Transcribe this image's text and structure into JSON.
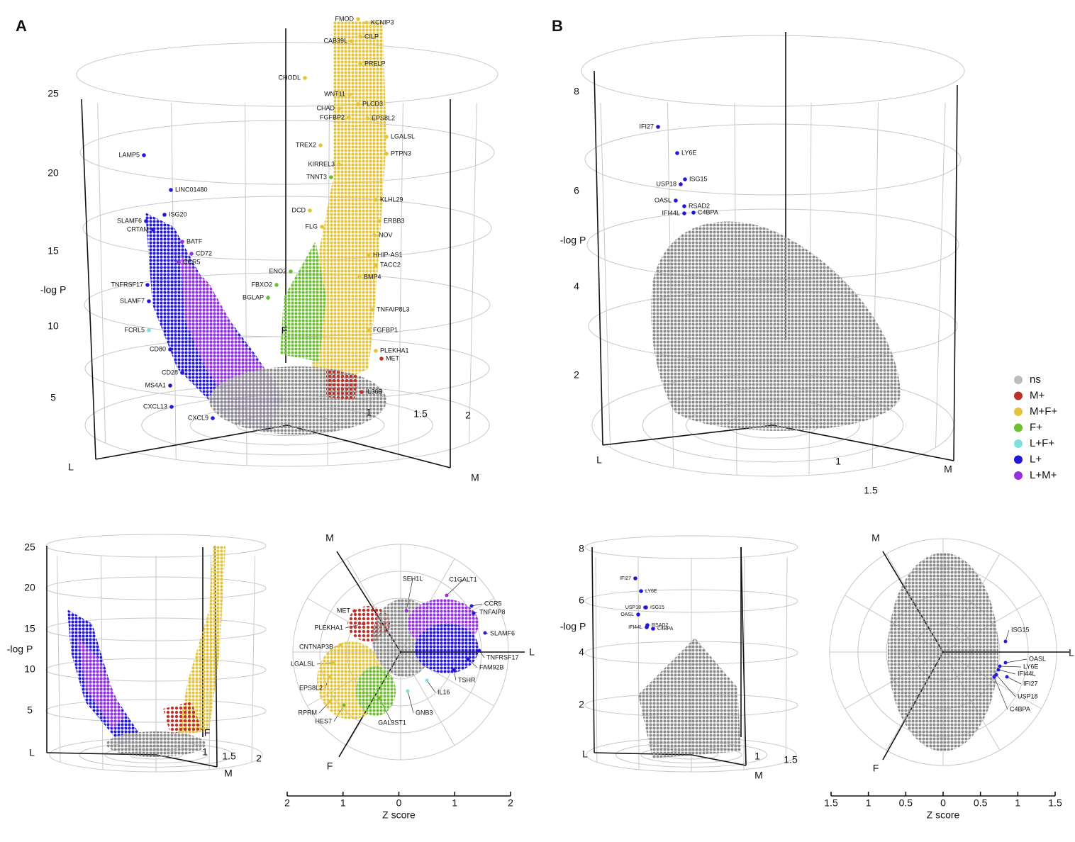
{
  "panel_labels": [
    "A",
    "B"
  ],
  "legend": [
    {
      "label": "ns",
      "color": "#bdbdbd"
    },
    {
      "label": "M+",
      "color": "#c0302a"
    },
    {
      "label": "M+F+",
      "color": "#e3c43a"
    },
    {
      "label": "F+",
      "color": "#6cbf33"
    },
    {
      "label": "L+F+",
      "color": "#7fdede"
    },
    {
      "label": "L+",
      "color": "#2418d8"
    },
    {
      "label": "L+M+",
      "color": "#9630e0"
    }
  ],
  "panel_a": {
    "main": {
      "y_axis_label": "-log P",
      "yticks": [
        "25",
        "20",
        "15",
        "10",
        "5"
      ],
      "radial_ticks": [
        "1",
        "1.5",
        "2"
      ],
      "axis_labels": [
        "L",
        "M",
        "F"
      ],
      "genes": [
        "FMOD",
        "KCNIP3",
        "CAB39L",
        "CILP",
        "PRELP",
        "CHODL",
        "WNT11",
        "PLCD3",
        "CHAD",
        "FGFBP2",
        "EPS8L2",
        "LGALSL",
        "TREX2",
        "PTPN3",
        "KIRREL3",
        "TNNT3",
        "KLHL29",
        "DCD",
        "ERBB3",
        "FLG",
        "NOV",
        "HHIP-AS1",
        "TACC2",
        "ENO2",
        "FBXO2",
        "BGLAP",
        "BMP4",
        "TNFAIP8L3",
        "FGFBP1",
        "PLEKHA1",
        "MET",
        "IL36B",
        "LAMP5",
        "LINC01480",
        "SLAMF6",
        "ISG20",
        "CRTAM",
        "BATF",
        "CD72",
        "CCR5",
        "TNFRSF17",
        "SLAMF7",
        "FCRL5",
        "CD80",
        "CD28",
        "MS4A1",
        "CXCL13",
        "CXCL9"
      ]
    },
    "small": {
      "y_axis_label": "-log P",
      "yticks": [
        "25",
        "20",
        "15",
        "10",
        "5"
      ],
      "radial_ticks": [
        "1",
        "1.5",
        "2"
      ],
      "axis_labels": [
        "L",
        "M",
        "F"
      ]
    },
    "polar": {
      "axis_labels": [
        "M",
        "L",
        "F"
      ],
      "genes": [
        "SEH1L",
        "C1GALT1",
        "CCR5",
        "TNFAIP8",
        "SLAMF6",
        "TNFRSF17",
        "FAM92B",
        "TSHR",
        "IL16",
        "GNB3",
        "GAL3ST1",
        "HES7",
        "RPRM",
        "EPS8L2",
        "LGALSL",
        "CNTNAP3B",
        "PLEKHA1",
        "MET"
      ],
      "z_axis_title": "Z score",
      "z_ticks": [
        "2",
        "1",
        "0",
        "1",
        "2"
      ]
    }
  },
  "panel_b": {
    "main": {
      "y_axis_label": "-log P",
      "yticks": [
        "8",
        "6",
        "4",
        "2"
      ],
      "radial_ticks": [
        "1",
        "1.5"
      ],
      "axis_labels": [
        "L",
        "M"
      ],
      "genes": [
        "IFI27",
        "LY6E",
        "USP18",
        "ISG15",
        "OASL",
        "RSAD2",
        "IFI44L",
        "C4BPA"
      ]
    },
    "small": {
      "y_axis_label": "-log P",
      "yticks": [
        "8",
        "6",
        "4",
        "2"
      ],
      "radial_ticks": [
        "1",
        "1.5"
      ],
      "axis_labels": [
        "L",
        "M"
      ],
      "genes": [
        "IFI27",
        "LY6E",
        "USP18",
        "ISG15",
        "OASL",
        "RSAD2",
        "IFI44L",
        "C4BPA"
      ]
    },
    "polar": {
      "axis_labels": [
        "M",
        "L",
        "F"
      ],
      "genes": [
        "ISG15",
        "OASL",
        "LY6E",
        "IFI44L",
        "IFI27",
        "USP18",
        "C4BPA"
      ],
      "z_axis_title": "Z score",
      "z_ticks": [
        "1.5",
        "1",
        "0.5",
        "0",
        "0.5",
        "1",
        "1.5"
      ]
    }
  }
}
